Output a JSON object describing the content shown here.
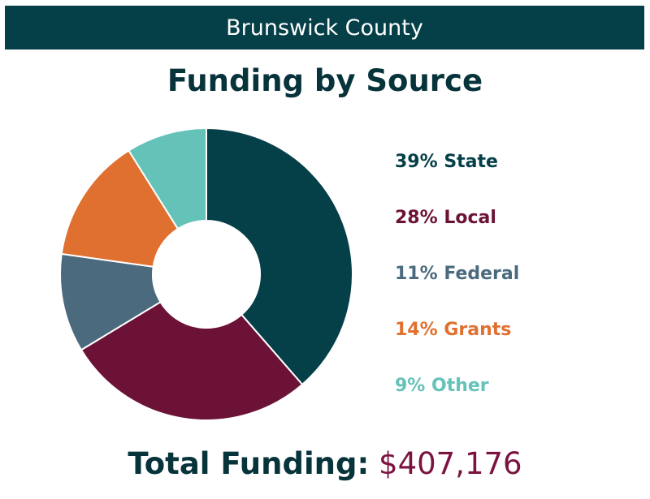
{
  "header": {
    "county": "Brunswick County"
  },
  "title": "Funding by Source",
  "total": {
    "label": "Total Funding:",
    "value": "$407,176"
  },
  "colors": {
    "header_bg": "#053f47",
    "title_text": "#07333b",
    "total_value": "#7a1340"
  },
  "chart_data": {
    "type": "pie",
    "title": "Funding by Source",
    "donut": true,
    "slices": [
      {
        "label": "39% State",
        "name": "State",
        "value": 39,
        "color": "#053f47"
      },
      {
        "label": "28% Local",
        "name": "Local",
        "value": 28,
        "color": "#6b1236"
      },
      {
        "label": "11% Federal",
        "name": "Federal",
        "value": 11,
        "color": "#4b6a7e"
      },
      {
        "label": "14% Grants",
        "name": "Grants",
        "value": 14,
        "color": "#e07030"
      },
      {
        "label": "9% Other",
        "name": "Other",
        "value": 9,
        "color": "#65c2b9"
      }
    ],
    "legend_position": "right"
  }
}
